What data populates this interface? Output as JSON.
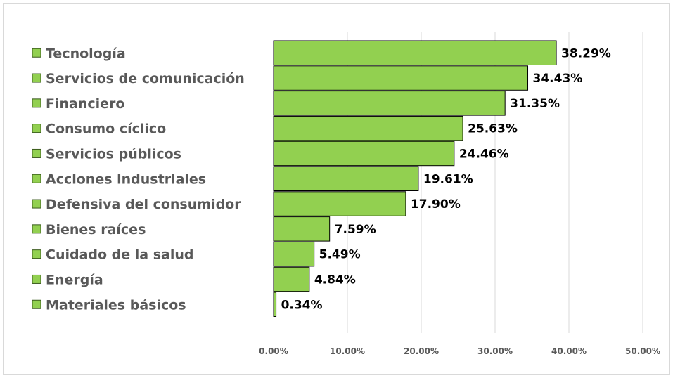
{
  "chart_data": {
    "type": "bar",
    "orientation": "horizontal",
    "title": "",
    "xlabel": "",
    "ylabel": "",
    "categories": [
      "Tecnología",
      "Servicios de comunicación",
      "Financiero",
      "Consumo cíclico",
      "Servicios públicos",
      "Acciones industriales",
      "Defensiva del consumidor",
      "Bienes raíces",
      "Cuidado de la salud",
      "Energía",
      "Materiales básicos"
    ],
    "values": [
      38.29,
      34.43,
      31.35,
      25.63,
      24.46,
      19.61,
      17.9,
      7.59,
      5.49,
      4.84,
      0.34
    ],
    "value_labels": [
      "38.29%",
      "34.43%",
      "31.35%",
      "25.63%",
      "24.46%",
      "19.61%",
      "17.90%",
      "7.59%",
      "5.49%",
      "4.84%",
      "0.34%"
    ],
    "xlim": [
      0,
      50
    ],
    "x_ticks": [
      0,
      10,
      20,
      30,
      40,
      50
    ],
    "x_tick_labels": [
      "0.00%",
      "10.00%",
      "20.00%",
      "30.00%",
      "40.00%",
      "50.00%"
    ],
    "grid": "vertical",
    "legend": "left",
    "colors": {
      "bar_fill": "#92d050",
      "bar_stroke": "#000000",
      "grid": "#d9d9d9",
      "category_text": "#595959",
      "value_text": "#000000",
      "tick_text": "#595959"
    }
  }
}
